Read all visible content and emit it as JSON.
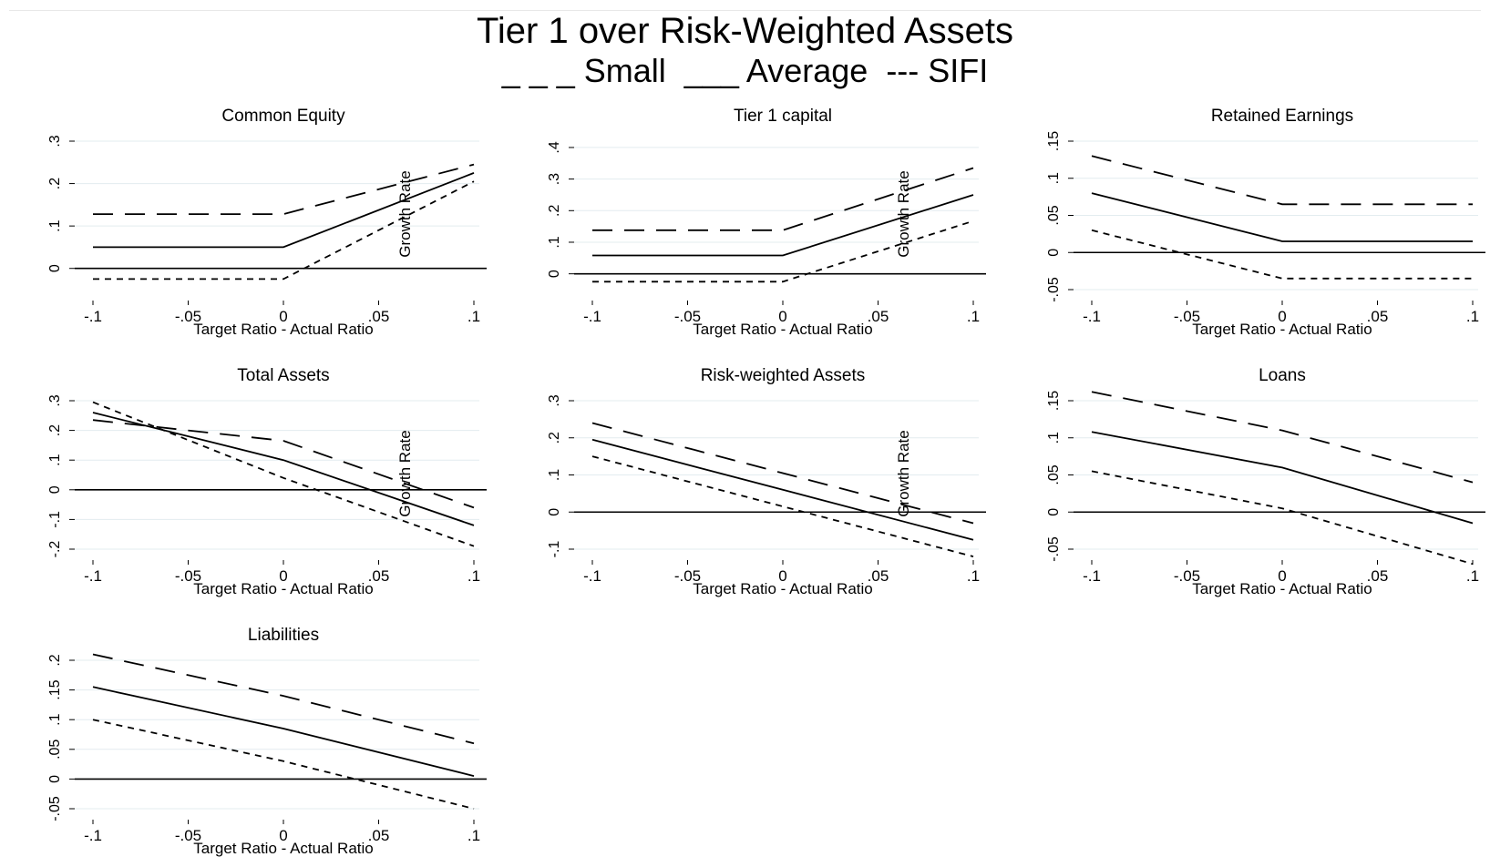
{
  "title": "Tier 1 over Risk-Weighted Assets",
  "legend_text": "_ _ _ Small  ___ Average  --- SIFI",
  "chart_data": [
    {
      "type": "line",
      "title": "Common Equity",
      "xlabel": "Target Ratio - Actual Ratio",
      "ylabel": "Growth Rate",
      "x": [
        -0.1,
        0,
        0.1
      ],
      "xticks": [
        "-.1",
        "-.05",
        "0",
        ".05",
        ".1"
      ],
      "yticks": [
        "0",
        ".1",
        ".2",
        ".3"
      ],
      "ylim": [
        -0.05,
        0.3
      ],
      "series": [
        {
          "style": "long-dash",
          "values": [
            0.128,
            0.128,
            0.245
          ]
        },
        {
          "style": "solid",
          "values": [
            0.05,
            0.05,
            0.225
          ]
        },
        {
          "style": "short-dash",
          "values": [
            -0.025,
            -0.025,
            0.205
          ]
        }
      ]
    },
    {
      "type": "line",
      "title": "Tier 1 capital",
      "xlabel": "Target Ratio - Actual Ratio",
      "ylabel": "Growth Rate",
      "x": [
        -0.1,
        0,
        0.1
      ],
      "xticks": [
        "-.1",
        "-.05",
        "0",
        ".05",
        ".1"
      ],
      "yticks": [
        "0",
        ".1",
        ".2",
        ".3",
        ".4"
      ],
      "ylim": [
        -0.05,
        0.42
      ],
      "series": [
        {
          "style": "long-dash",
          "values": [
            0.138,
            0.138,
            0.335
          ]
        },
        {
          "style": "solid",
          "values": [
            0.058,
            0.058,
            0.25
          ]
        },
        {
          "style": "short-dash",
          "values": [
            -0.025,
            -0.025,
            0.167
          ]
        }
      ]
    },
    {
      "type": "line",
      "title": "Retained Earnings",
      "xlabel": "Target Ratio - Actual Ratio",
      "ylabel": "",
      "x": [
        -0.1,
        0,
        0.1
      ],
      "xticks": [
        "-.1",
        "-.05",
        "0",
        ".05",
        ".1"
      ],
      "yticks": [
        "-.05",
        "0",
        ".05",
        ".1",
        ".15"
      ],
      "ylim": [
        -0.05,
        0.15
      ],
      "series": [
        {
          "style": "long-dash",
          "values": [
            0.13,
            0.065,
            0.065
          ]
        },
        {
          "style": "solid",
          "values": [
            0.08,
            0.015,
            0.015
          ]
        },
        {
          "style": "short-dash",
          "values": [
            0.03,
            -0.035,
            -0.035
          ]
        }
      ]
    },
    {
      "type": "line",
      "title": "Total Assets",
      "xlabel": "Target Ratio - Actual Ratio",
      "ylabel": "Growth Rate",
      "x": [
        -0.1,
        0,
        0.1
      ],
      "xticks": [
        "-.1",
        "-.05",
        "0",
        ".05",
        ".1"
      ],
      "yticks": [
        "-.2",
        "-.1",
        "0",
        ".1",
        ".2",
        ".3"
      ],
      "ylim": [
        -0.2,
        0.3
      ],
      "series": [
        {
          "style": "long-dash",
          "values": [
            0.235,
            0.165,
            -0.06
          ]
        },
        {
          "style": "solid",
          "values": [
            0.26,
            0.1,
            -0.12
          ]
        },
        {
          "style": "short-dash",
          "values": [
            0.295,
            0.04,
            -0.19
          ]
        }
      ]
    },
    {
      "type": "line",
      "title": "Risk-weighted Assets",
      "xlabel": "Target Ratio - Actual Ratio",
      "ylabel": "Growth Rate",
      "x": [
        -0.1,
        0,
        0.1
      ],
      "xticks": [
        "-.1",
        "-.05",
        "0",
        ".05",
        ".1"
      ],
      "yticks": [
        "-.1",
        "0",
        ".1",
        ".2",
        ".3"
      ],
      "ylim": [
        -0.1,
        0.3
      ],
      "series": [
        {
          "style": "long-dash",
          "values": [
            0.24,
            0.105,
            -0.03
          ]
        },
        {
          "style": "solid",
          "values": [
            0.195,
            0.06,
            -0.075
          ]
        },
        {
          "style": "short-dash",
          "values": [
            0.15,
            0.015,
            -0.12
          ]
        }
      ]
    },
    {
      "type": "line",
      "title": "Loans",
      "xlabel": "Target Ratio - Actual Ratio",
      "ylabel": "",
      "x": [
        -0.1,
        0,
        0.1
      ],
      "xticks": [
        "-.1",
        "-.05",
        "0",
        ".05",
        ".1"
      ],
      "yticks": [
        "-.05",
        "0",
        ".05",
        ".1",
        ".15"
      ],
      "ylim": [
        -0.05,
        0.15
      ],
      "series": [
        {
          "style": "long-dash",
          "values": [
            0.162,
            0.11,
            0.04
          ]
        },
        {
          "style": "solid",
          "values": [
            0.108,
            0.06,
            -0.015
          ]
        },
        {
          "style": "short-dash",
          "values": [
            0.055,
            0.005,
            -0.07
          ]
        }
      ]
    },
    {
      "type": "line",
      "title": "Liabilities",
      "xlabel": "Target Ratio - Actual Ratio",
      "ylabel": "",
      "x": [
        -0.1,
        0,
        0.1
      ],
      "xticks": [
        "-.1",
        "-.05",
        "0",
        ".05",
        ".1"
      ],
      "yticks": [
        "-.05",
        "0",
        ".05",
        ".1",
        ".15",
        ".2"
      ],
      "ylim": [
        -0.05,
        0.2
      ],
      "series": [
        {
          "style": "long-dash",
          "values": [
            0.21,
            0.14,
            0.06
          ]
        },
        {
          "style": "solid",
          "values": [
            0.155,
            0.085,
            0.005
          ]
        },
        {
          "style": "short-dash",
          "values": [
            0.1,
            0.03,
            -0.05
          ]
        }
      ]
    }
  ]
}
